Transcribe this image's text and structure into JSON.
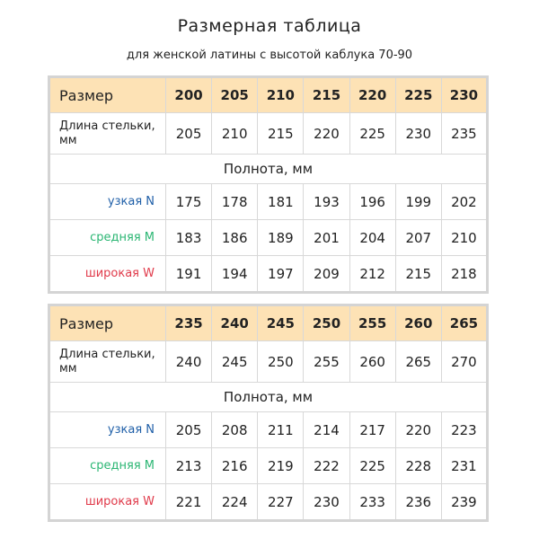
{
  "title": "Размерная таблица",
  "subtitle": "для женской латины с высотой каблука 70-90",
  "colors": {
    "header_bg": "#fde2b5",
    "narrow": "#1f5fa8",
    "medium": "#2bb673",
    "wide": "#e03a4a"
  },
  "labels": {
    "size": "Размер",
    "insole_length": "Длина стельки, мм",
    "fullness": "Полнота, мм",
    "narrow": "узкая N",
    "medium": "средняя M",
    "wide": "широкая W"
  },
  "tables": [
    {
      "sizes": [
        "200",
        "205",
        "210",
        "215",
        "220",
        "225",
        "230"
      ],
      "insole_length": [
        "205",
        "210",
        "215",
        "220",
        "225",
        "230",
        "235"
      ],
      "narrow": [
        "175",
        "178",
        "181",
        "193",
        "196",
        "199",
        "202"
      ],
      "medium": [
        "183",
        "186",
        "189",
        "201",
        "204",
        "207",
        "210"
      ],
      "wide": [
        "191",
        "194",
        "197",
        "209",
        "212",
        "215",
        "218"
      ]
    },
    {
      "sizes": [
        "235",
        "240",
        "245",
        "250",
        "255",
        "260",
        "265"
      ],
      "insole_length": [
        "240",
        "245",
        "250",
        "255",
        "260",
        "265",
        "270"
      ],
      "narrow": [
        "205",
        "208",
        "211",
        "214",
        "217",
        "220",
        "223"
      ],
      "medium": [
        "213",
        "216",
        "219",
        "222",
        "225",
        "228",
        "231"
      ],
      "wide": [
        "221",
        "224",
        "227",
        "230",
        "233",
        "236",
        "239"
      ]
    }
  ]
}
